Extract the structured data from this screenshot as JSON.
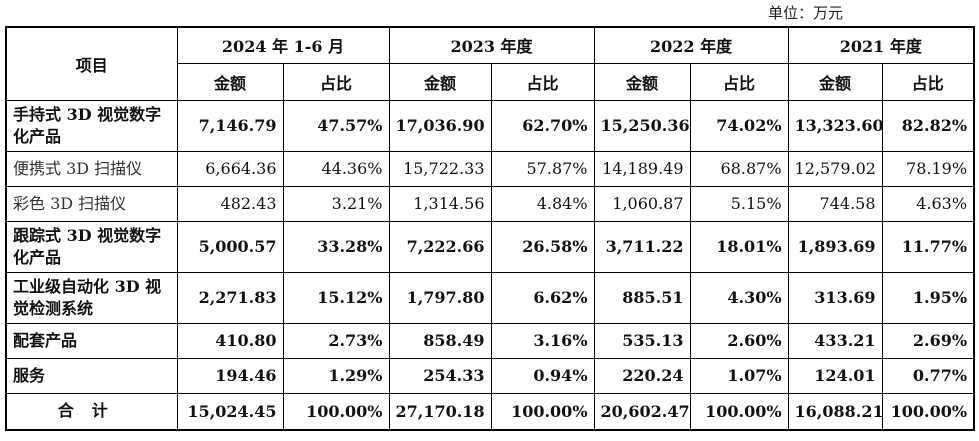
{
  "unit": "单位：万元",
  "header": {
    "item": "项目",
    "periods": [
      "2024 年 1-6 月",
      "2023 年度",
      "2022 年度",
      "2021 年度"
    ],
    "amount": "金额",
    "ratio": "占比"
  },
  "rows": [
    {
      "label": "手持式 3D 视觉数字化产品",
      "bold": true,
      "cells": [
        "7,146.79",
        "47.57%",
        "17,036.90",
        "62.70%",
        "15,250.36",
        "74.02%",
        "13,323.60",
        "82.82%"
      ]
    },
    {
      "label": "便携式 3D 扫描仪",
      "bold": false,
      "cells": [
        "6,664.36",
        "44.36%",
        "15,722.33",
        "57.87%",
        "14,189.49",
        "68.87%",
        "12,579.02",
        "78.19%"
      ]
    },
    {
      "label": "彩色 3D 扫描仪",
      "bold": false,
      "cells": [
        "482.43",
        "3.21%",
        "1,314.56",
        "4.84%",
        "1,060.87",
        "5.15%",
        "744.58",
        "4.63%"
      ]
    },
    {
      "label": "跟踪式 3D 视觉数字化产品",
      "bold": true,
      "cells": [
        "5,000.57",
        "33.28%",
        "7,222.66",
        "26.58%",
        "3,711.22",
        "18.01%",
        "1,893.69",
        "11.77%"
      ]
    },
    {
      "label": "工业级自动化 3D 视觉检测系统",
      "bold": true,
      "cells": [
        "2,271.83",
        "15.12%",
        "1,797.80",
        "6.62%",
        "885.51",
        "4.30%",
        "313.69",
        "1.95%"
      ]
    },
    {
      "label": "配套产品",
      "bold": true,
      "cells": [
        "410.80",
        "2.73%",
        "858.49",
        "3.16%",
        "535.13",
        "2.60%",
        "433.21",
        "2.69%"
      ]
    },
    {
      "label": "服务",
      "bold": true,
      "cells": [
        "194.46",
        "1.29%",
        "254.33",
        "0.94%",
        "220.24",
        "1.07%",
        "124.01",
        "0.77%"
      ]
    }
  ],
  "total": {
    "label": "合计",
    "cells": [
      "15,024.45",
      "100.00%",
      "27,170.18",
      "100.00%",
      "20,602.47",
      "100.00%",
      "16,088.21",
      "100.00%"
    ]
  }
}
